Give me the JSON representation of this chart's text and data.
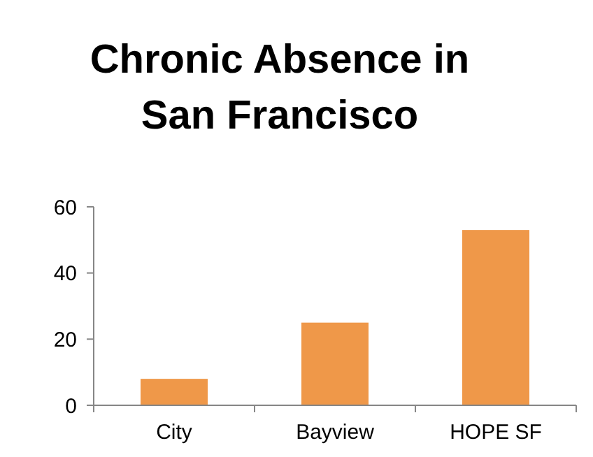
{
  "chart_data": {
    "type": "bar",
    "title": "Chronic Absence in San Francisco",
    "categories": [
      "City",
      "Bayview",
      "HOPE SF"
    ],
    "values": [
      8,
      25,
      53
    ],
    "color": "#ef9849",
    "ylim": [
      0,
      60
    ],
    "yticks": [
      0,
      20,
      40,
      60
    ],
    "grid": false
  }
}
